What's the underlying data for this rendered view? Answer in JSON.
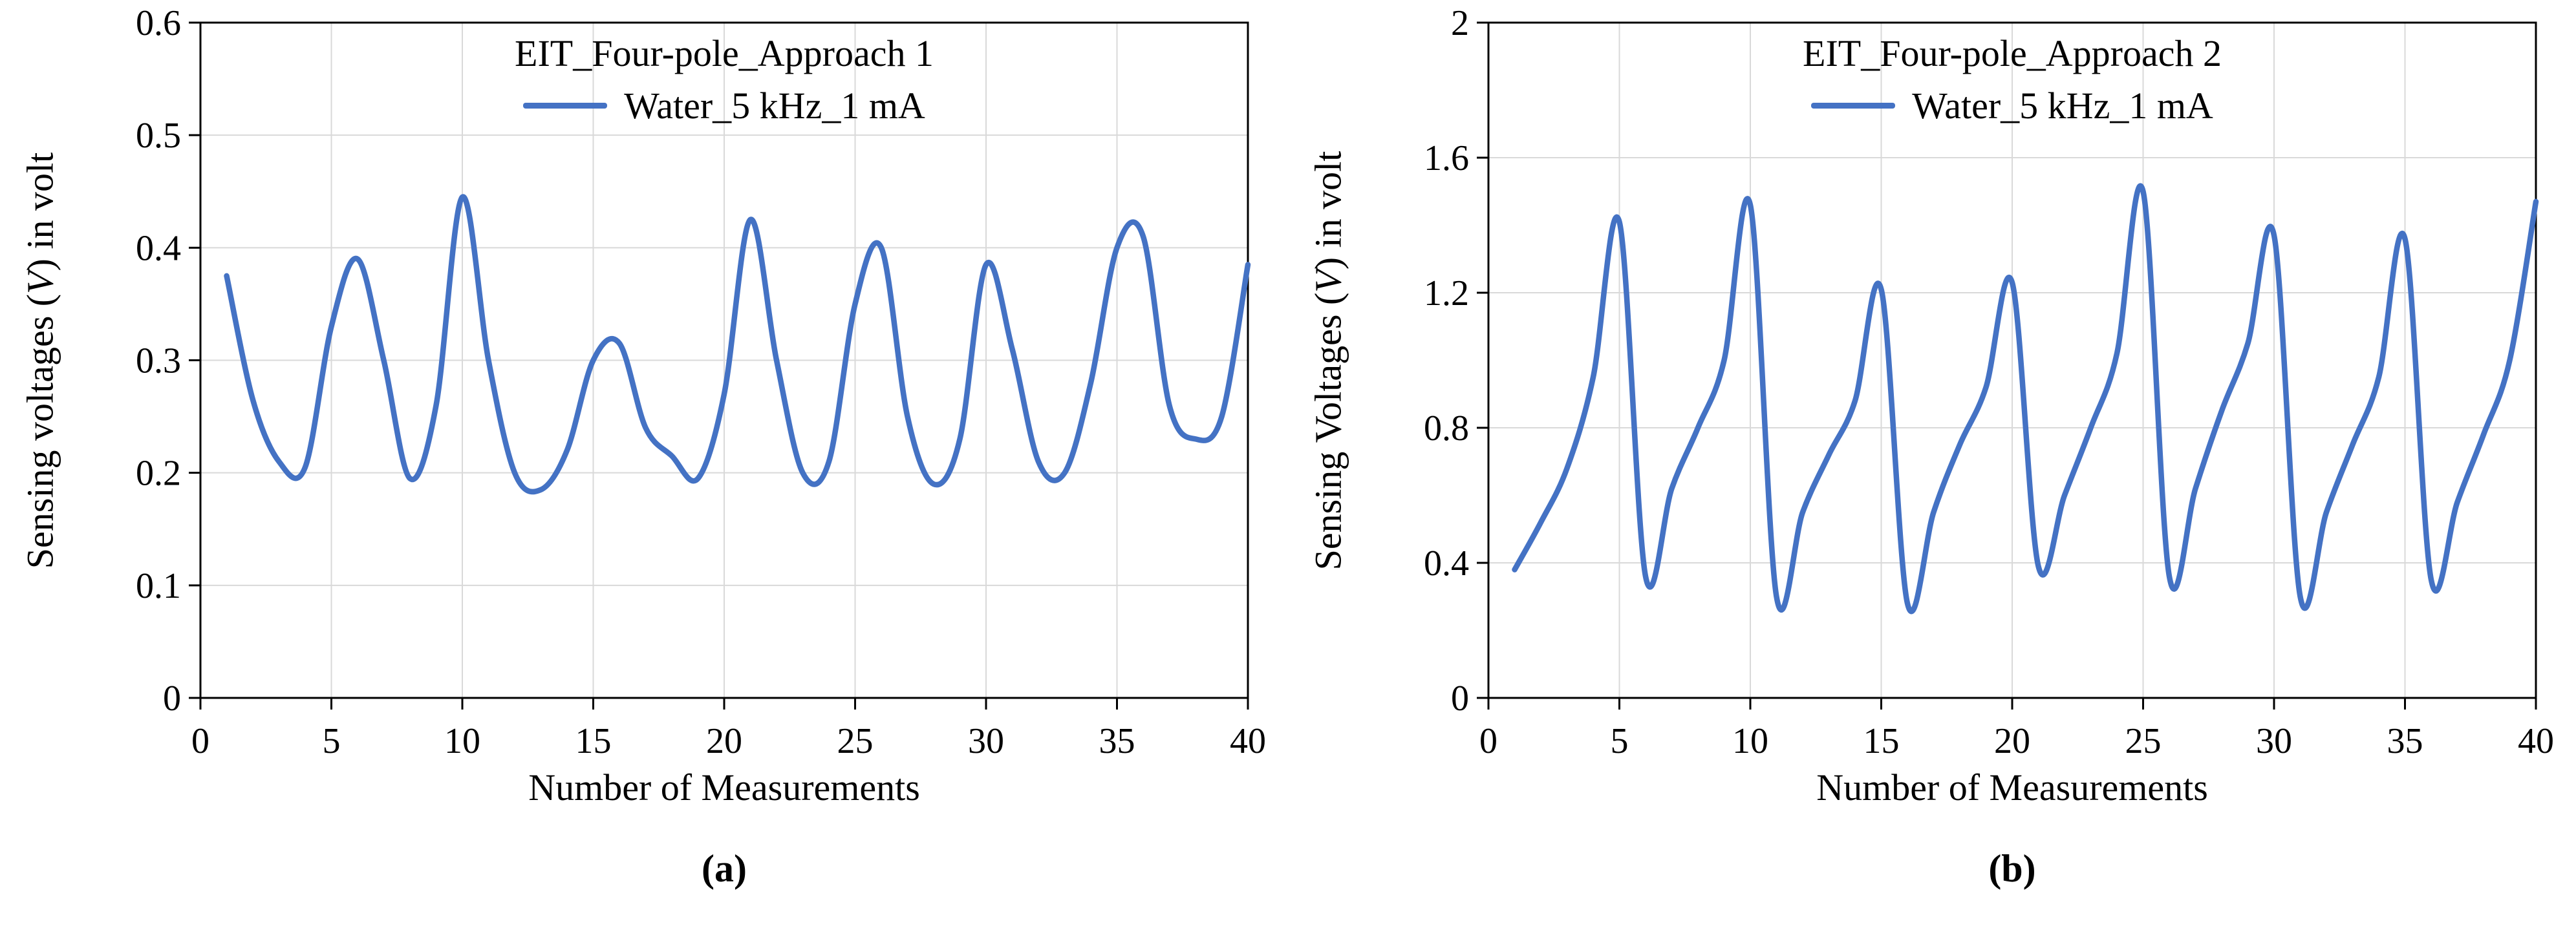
{
  "chart_data": [
    {
      "type": "line",
      "panel": "a",
      "caption": "(a)",
      "title": "EIT_Four-pole_Approach 1",
      "legend_label": "Water_5 kHz_1 mA",
      "legend_position": "top-center-inside",
      "xlabel": "Number of Measurements",
      "ylabel": "Sensing voltages (V) in volt",
      "ylabel_parts": {
        "pre": "Sensing voltages (",
        "var": "V",
        "post": ") in volt"
      },
      "line_color": "#4472C4",
      "grid_color": "#d9d9d9",
      "grid": true,
      "xlim": [
        0,
        40
      ],
      "ylim": [
        0,
        0.6
      ],
      "xticks": [
        0,
        5,
        10,
        15,
        20,
        25,
        30,
        35,
        40
      ],
      "xtick_labels": [
        "0",
        "5",
        "10",
        "15",
        "20",
        "25",
        "30",
        "35",
        "40"
      ],
      "yticks": [
        0,
        0.1,
        0.2,
        0.3,
        0.4,
        0.5,
        0.6
      ],
      "ytick_labels": [
        "0",
        "0.1",
        "0.2",
        "0.3",
        "0.4",
        "0.5",
        "0.6"
      ],
      "x": [
        1,
        2,
        3,
        4,
        5,
        6,
        7,
        8,
        9,
        10,
        11,
        12,
        13,
        14,
        15,
        16,
        17,
        18,
        19,
        20,
        21,
        22,
        23,
        24,
        25,
        26,
        27,
        28,
        29,
        30,
        31,
        32,
        33,
        34,
        35,
        36,
        37,
        38,
        39,
        40
      ],
      "y": [
        0.375,
        0.265,
        0.21,
        0.205,
        0.33,
        0.39,
        0.3,
        0.195,
        0.26,
        0.445,
        0.3,
        0.2,
        0.185,
        0.22,
        0.3,
        0.315,
        0.24,
        0.215,
        0.195,
        0.27,
        0.425,
        0.3,
        0.2,
        0.21,
        0.35,
        0.4,
        0.25,
        0.19,
        0.23,
        0.385,
        0.31,
        0.21,
        0.2,
        0.28,
        0.4,
        0.41,
        0.26,
        0.23,
        0.25,
        0.385
      ]
    },
    {
      "type": "line",
      "panel": "b",
      "caption": "(b)",
      "title": "EIT_Four-pole_Approach 2",
      "legend_label": "Water_5 kHz_1 mA",
      "legend_position": "top-center-inside",
      "xlabel": "Number of Measurements",
      "ylabel": "Sensing Voltages (V) in volt",
      "ylabel_parts": {
        "pre": "Sensing Voltages (",
        "var": "V",
        "post": ") in volt"
      },
      "line_color": "#4472C4",
      "grid_color": "#d9d9d9",
      "grid": true,
      "xlim": [
        0,
        40
      ],
      "ylim": [
        0,
        2
      ],
      "xticks": [
        0,
        5,
        10,
        15,
        20,
        25,
        30,
        35,
        40
      ],
      "xtick_labels": [
        "0",
        "5",
        "10",
        "15",
        "20",
        "25",
        "30",
        "35",
        "40"
      ],
      "yticks": [
        0,
        0.4,
        0.8,
        1.2,
        1.6,
        2
      ],
      "ytick_labels": [
        "0",
        "0.4",
        "0.8",
        "1.2",
        "1.6",
        "2"
      ],
      "x": [
        1,
        2,
        3,
        4,
        5,
        6,
        7,
        8,
        9,
        10,
        11,
        12,
        13,
        14,
        15,
        16,
        17,
        18,
        19,
        20,
        21,
        22,
        23,
        24,
        25,
        26,
        27,
        28,
        29,
        30,
        31,
        32,
        33,
        34,
        35,
        36,
        37,
        38,
        39,
        40
      ],
      "y": [
        0.38,
        0.52,
        0.68,
        0.95,
        1.41,
        0.36,
        0.62,
        0.8,
        1.0,
        1.46,
        0.3,
        0.55,
        0.72,
        0.88,
        1.21,
        0.28,
        0.55,
        0.75,
        0.92,
        1.23,
        0.39,
        0.6,
        0.8,
        1.02,
        1.5,
        0.36,
        0.62,
        0.85,
        1.05,
        1.37,
        0.3,
        0.55,
        0.75,
        0.95,
        1.36,
        0.35,
        0.58,
        0.78,
        1.0,
        1.47
      ]
    }
  ]
}
